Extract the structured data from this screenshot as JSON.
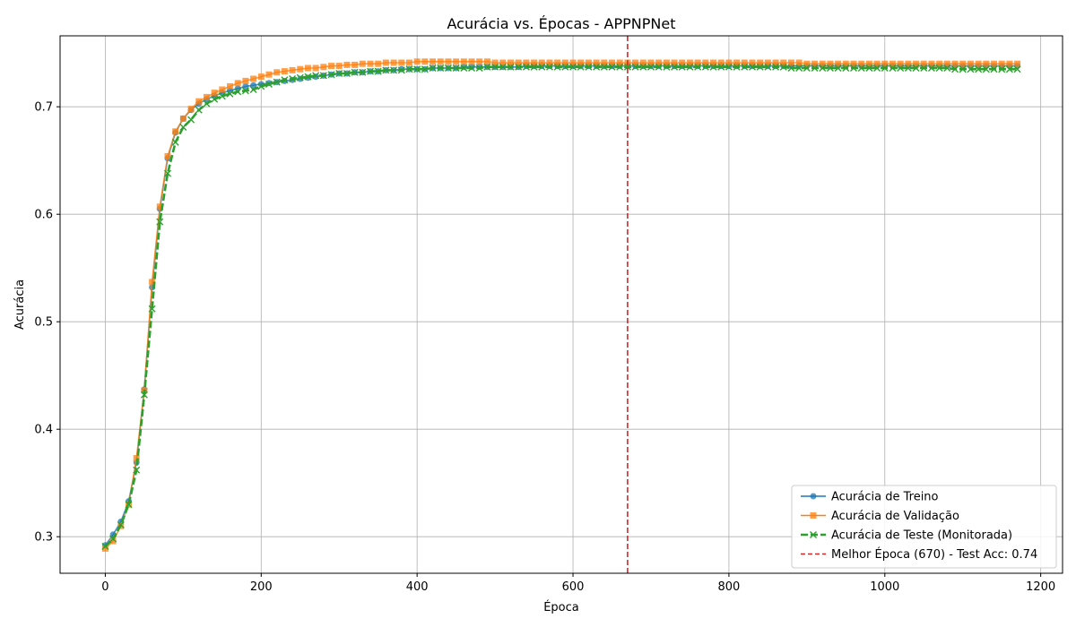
{
  "chart_data": {
    "type": "line",
    "title": "Acurácia vs. Épocas - APPNPNet",
    "xlabel": "Época",
    "ylabel": "Acurácia",
    "xlim": [
      -58,
      1228
    ],
    "ylim": [
      0.266,
      0.766
    ],
    "xticks": [
      0,
      200,
      400,
      600,
      800,
      1000,
      1200
    ],
    "yticks": [
      0.3,
      0.4,
      0.5,
      0.6,
      0.7
    ],
    "xtick_labels": [
      "0",
      "200",
      "400",
      "600",
      "800",
      "1000",
      "1200"
    ],
    "ytick_labels": [
      "0.3",
      "0.4",
      "0.5",
      "0.6",
      "0.7"
    ],
    "grid": true,
    "legend_position": "lower-right",
    "x": [
      0,
      10,
      20,
      30,
      40,
      50,
      60,
      70,
      80,
      90,
      100,
      110,
      120,
      130,
      140,
      150,
      160,
      170,
      180,
      190,
      200,
      210,
      220,
      230,
      240,
      250,
      260,
      270,
      280,
      290,
      300,
      310,
      320,
      330,
      340,
      350,
      360,
      370,
      380,
      390,
      400,
      410,
      420,
      430,
      440,
      450,
      460,
      470,
      480,
      490,
      500,
      510,
      520,
      530,
      540,
      550,
      560,
      570,
      580,
      590,
      600,
      610,
      620,
      630,
      640,
      650,
      660,
      670,
      680,
      690,
      700,
      710,
      720,
      730,
      740,
      750,
      760,
      770,
      780,
      790,
      800,
      810,
      820,
      830,
      840,
      850,
      860,
      870,
      880,
      890,
      900,
      910,
      920,
      930,
      940,
      950,
      960,
      970,
      980,
      990,
      1000,
      1010,
      1020,
      1030,
      1040,
      1050,
      1060,
      1070,
      1080,
      1090,
      1100,
      1110,
      1120,
      1130,
      1140,
      1150,
      1160,
      1170
    ],
    "series": [
      {
        "name": "Acurácia de Treino",
        "color": "#1f77b4",
        "marker": "circle",
        "dashed": false,
        "values": [
          0.292,
          0.302,
          0.314,
          0.333,
          0.369,
          0.437,
          0.532,
          0.605,
          0.652,
          0.676,
          0.689,
          0.697,
          0.703,
          0.707,
          0.71,
          0.713,
          0.715,
          0.717,
          0.719,
          0.72,
          0.721,
          0.722,
          0.723,
          0.724,
          0.725,
          0.726,
          0.727,
          0.728,
          0.729,
          0.73,
          0.731,
          0.731,
          0.732,
          0.732,
          0.733,
          0.733,
          0.734,
          0.734,
          0.735,
          0.735,
          0.735,
          0.735,
          0.736,
          0.736,
          0.736,
          0.736,
          0.737,
          0.737,
          0.737,
          0.737,
          0.737,
          0.737,
          0.737,
          0.737,
          0.738,
          0.738,
          0.738,
          0.738,
          0.738,
          0.738,
          0.738,
          0.738,
          0.738,
          0.738,
          0.738,
          0.738,
          0.738,
          0.738,
          0.738,
          0.738,
          0.738,
          0.738,
          0.738,
          0.738,
          0.738,
          0.738,
          0.738,
          0.738,
          0.738,
          0.738,
          0.738,
          0.738,
          0.738,
          0.738,
          0.738,
          0.738,
          0.738,
          0.738,
          0.738,
          0.738,
          0.738,
          0.738,
          0.738,
          0.738,
          0.738,
          0.738,
          0.738,
          0.738,
          0.738,
          0.738,
          0.738,
          0.738,
          0.738,
          0.738,
          0.738,
          0.738,
          0.738,
          0.738,
          0.738,
          0.738,
          0.738,
          0.738,
          0.738,
          0.738,
          0.738,
          0.738,
          0.738,
          0.738
        ]
      },
      {
        "name": "Acurácia de Validação",
        "color": "#ff7f0e",
        "marker": "square",
        "dashed": false,
        "values": [
          0.289,
          0.296,
          0.31,
          0.33,
          0.373,
          0.436,
          0.537,
          0.607,
          0.654,
          0.677,
          0.689,
          0.698,
          0.705,
          0.709,
          0.713,
          0.716,
          0.719,
          0.722,
          0.724,
          0.726,
          0.728,
          0.73,
          0.732,
          0.733,
          0.734,
          0.735,
          0.736,
          0.736,
          0.737,
          0.738,
          0.738,
          0.739,
          0.739,
          0.74,
          0.74,
          0.74,
          0.741,
          0.741,
          0.741,
          0.741,
          0.742,
          0.742,
          0.742,
          0.742,
          0.742,
          0.742,
          0.742,
          0.742,
          0.742,
          0.742,
          0.741,
          0.741,
          0.741,
          0.741,
          0.741,
          0.741,
          0.741,
          0.741,
          0.741,
          0.741,
          0.741,
          0.741,
          0.741,
          0.741,
          0.741,
          0.741,
          0.741,
          0.741,
          0.741,
          0.741,
          0.741,
          0.741,
          0.741,
          0.741,
          0.741,
          0.741,
          0.741,
          0.741,
          0.741,
          0.741,
          0.741,
          0.741,
          0.741,
          0.741,
          0.741,
          0.741,
          0.741,
          0.741,
          0.741,
          0.741,
          0.74,
          0.74,
          0.74,
          0.74,
          0.74,
          0.74,
          0.74,
          0.74,
          0.74,
          0.74,
          0.74,
          0.74,
          0.74,
          0.74,
          0.74,
          0.74,
          0.74,
          0.74,
          0.74,
          0.74,
          0.74,
          0.74,
          0.74,
          0.74,
          0.74,
          0.74,
          0.74,
          0.74
        ]
      },
      {
        "name": "Acurácia de Teste (Monitorada)",
        "color": "#2ca02c",
        "marker": "x",
        "dashed": true,
        "values": [
          0.291,
          0.298,
          0.311,
          0.33,
          0.362,
          0.432,
          0.512,
          0.593,
          0.638,
          0.667,
          0.681,
          0.688,
          0.697,
          0.703,
          0.707,
          0.71,
          0.712,
          0.714,
          0.715,
          0.716,
          0.719,
          0.721,
          0.723,
          0.725,
          0.726,
          0.727,
          0.728,
          0.729,
          0.729,
          0.73,
          0.731,
          0.731,
          0.732,
          0.732,
          0.733,
          0.733,
          0.734,
          0.734,
          0.734,
          0.735,
          0.735,
          0.735,
          0.736,
          0.736,
          0.736,
          0.736,
          0.736,
          0.736,
          0.736,
          0.737,
          0.737,
          0.737,
          0.737,
          0.737,
          0.737,
          0.737,
          0.737,
          0.737,
          0.737,
          0.737,
          0.737,
          0.737,
          0.737,
          0.737,
          0.737,
          0.737,
          0.737,
          0.737,
          0.737,
          0.737,
          0.737,
          0.737,
          0.737,
          0.737,
          0.737,
          0.737,
          0.737,
          0.737,
          0.737,
          0.737,
          0.737,
          0.737,
          0.737,
          0.737,
          0.737,
          0.737,
          0.737,
          0.737,
          0.736,
          0.736,
          0.736,
          0.736,
          0.736,
          0.736,
          0.736,
          0.736,
          0.736,
          0.736,
          0.736,
          0.736,
          0.736,
          0.736,
          0.736,
          0.736,
          0.736,
          0.736,
          0.736,
          0.736,
          0.736,
          0.735,
          0.735,
          0.735,
          0.735,
          0.735,
          0.735,
          0.735,
          0.735,
          0.735
        ]
      }
    ],
    "best_epoch": {
      "x": 670,
      "color": "#d62728",
      "label": "Melhor Época (670) - Test Acc: 0.74"
    }
  }
}
